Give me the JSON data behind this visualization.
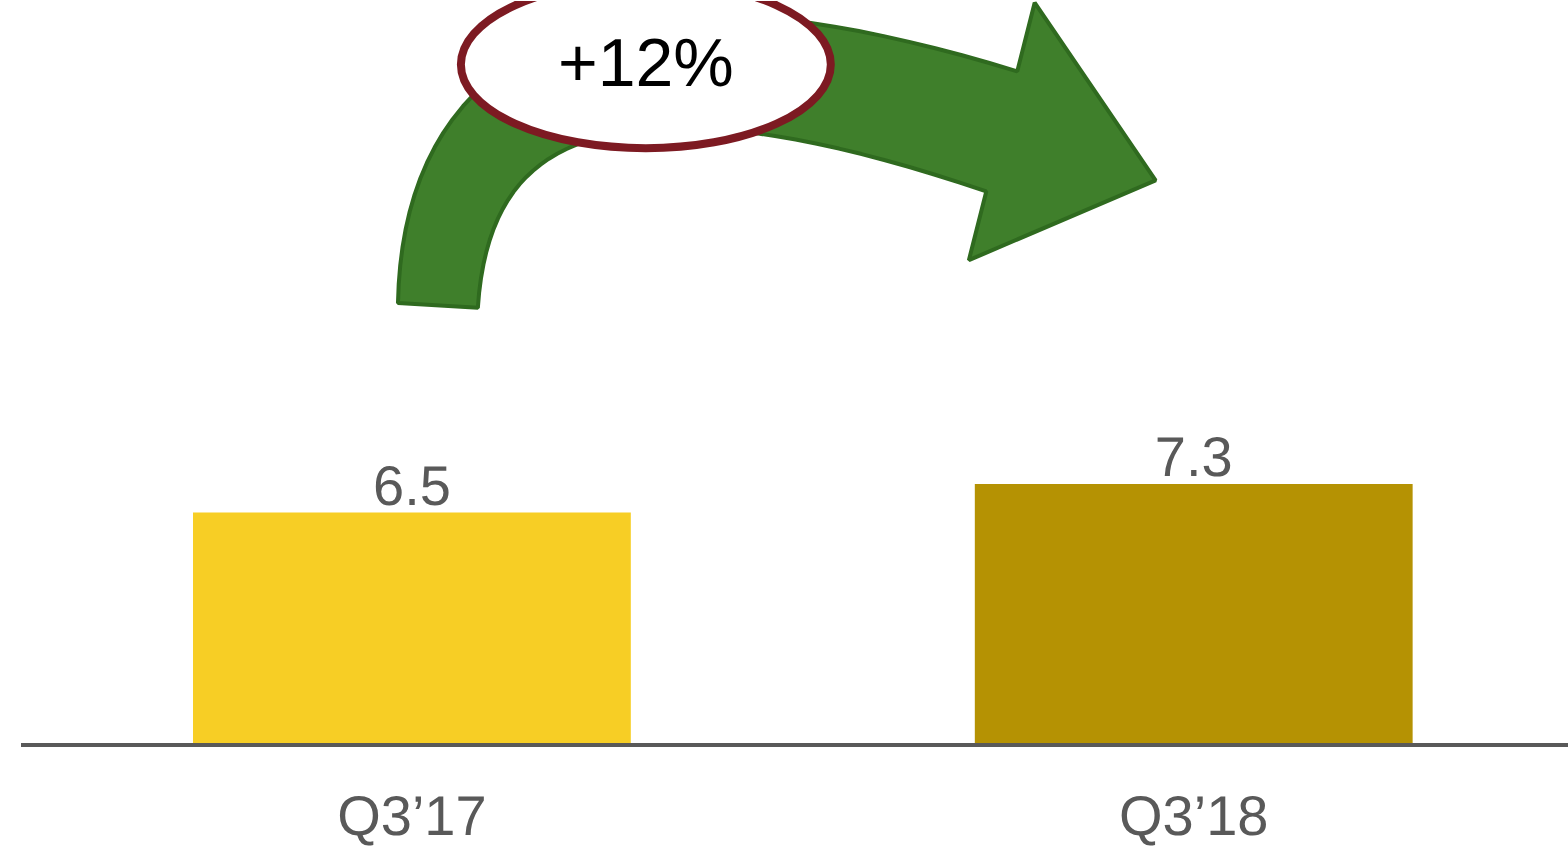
{
  "chart_data": {
    "type": "bar",
    "categories": [
      "Q3’17",
      "Q3’18"
    ],
    "values": [
      6.5,
      7.3
    ],
    "colors": [
      "#f7ce25",
      "#b59203"
    ],
    "data_labels": true,
    "annotations": [
      "+12%"
    ]
  }
}
